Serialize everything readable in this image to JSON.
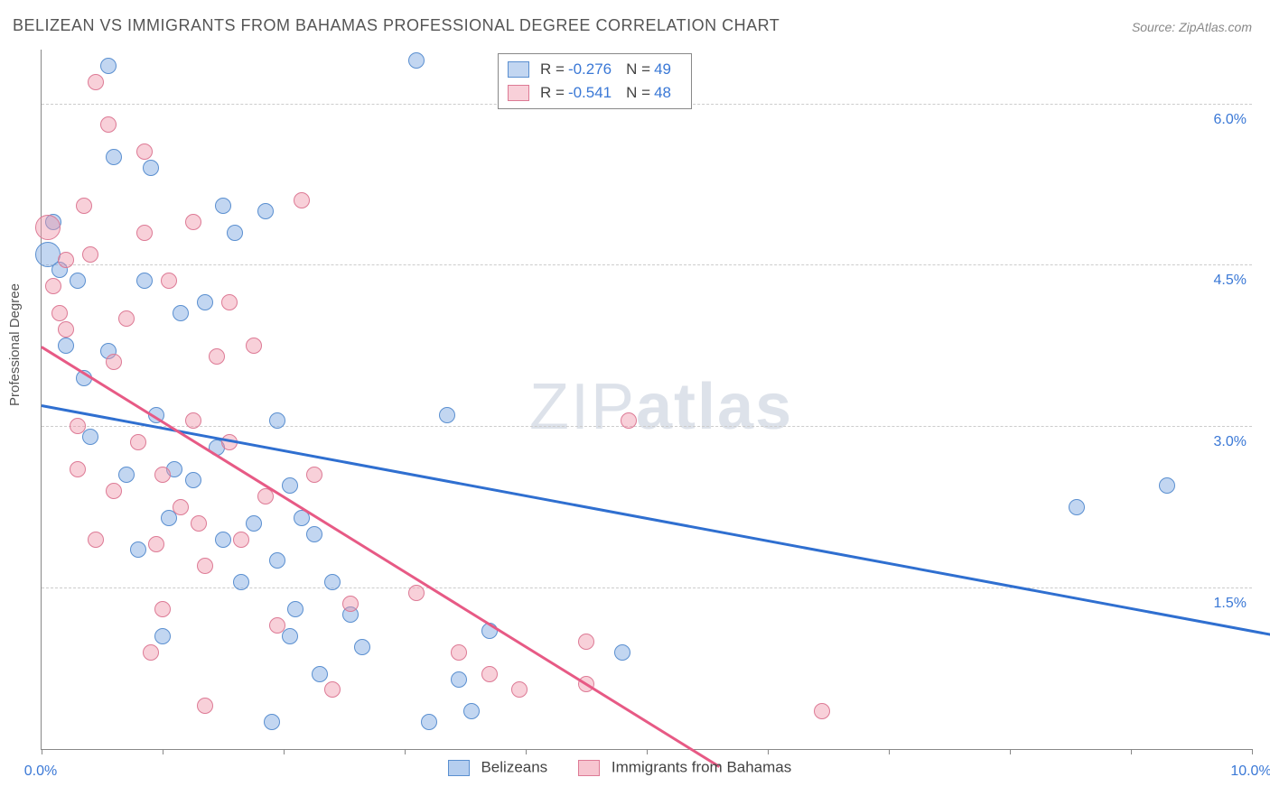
{
  "title": "BELIZEAN VS IMMIGRANTS FROM BAHAMAS PROFESSIONAL DEGREE CORRELATION CHART",
  "source": "Source: ZipAtlas.com",
  "ylabel": "Professional Degree",
  "watermark_thin": "ZIP",
  "watermark_bold": "atlas",
  "chart": {
    "type": "scatter",
    "xlim": [
      0.0,
      10.0
    ],
    "ylim": [
      0.0,
      6.5
    ],
    "x_ticks": [
      0.0,
      1.0,
      2.0,
      3.0,
      4.0,
      5.0,
      6.0,
      7.0,
      8.0,
      9.0,
      10.0
    ],
    "x_tick_labels": {
      "0": "0.0%",
      "10": "10.0%"
    },
    "y_gridlines": [
      1.5,
      3.0,
      4.5,
      6.0
    ],
    "y_tick_labels": {
      "1.5": "1.5%",
      "3.0": "3.0%",
      "4.5": "4.5%",
      "6.0": "6.0%"
    },
    "background_color": "#ffffff",
    "grid_color": "#cccccc",
    "axis_color": "#888888",
    "tick_label_color": "#3a78d6",
    "dot_radius": 9,
    "series": [
      {
        "name": "Belizeans",
        "fill": "rgba(120,165,225,0.45)",
        "stroke": "#5a8fd0",
        "line_color": "#2f6fd0",
        "R": "-0.276",
        "N": "49",
        "trend": {
          "x1": 0.0,
          "y1": 3.2,
          "x2": 10.5,
          "y2": 1.0
        },
        "points": [
          [
            0.05,
            4.6,
            14
          ],
          [
            0.1,
            4.9
          ],
          [
            0.3,
            4.35
          ],
          [
            0.55,
            6.35
          ],
          [
            0.6,
            5.5
          ],
          [
            0.7,
            2.55
          ],
          [
            0.85,
            4.35
          ],
          [
            0.9,
            5.4
          ],
          [
            1.15,
            4.05
          ],
          [
            1.35,
            4.15
          ],
          [
            1.5,
            5.05
          ],
          [
            1.1,
            2.6
          ],
          [
            1.25,
            2.5
          ],
          [
            1.45,
            2.8
          ],
          [
            1.5,
            1.95
          ],
          [
            1.6,
            4.8
          ],
          [
            1.65,
            1.55
          ],
          [
            1.75,
            2.1
          ],
          [
            1.95,
            3.05
          ],
          [
            2.05,
            2.45
          ],
          [
            2.15,
            2.15
          ],
          [
            2.25,
            2.0
          ],
          [
            2.4,
            1.55
          ],
          [
            2.55,
            1.25
          ],
          [
            2.65,
            0.95
          ],
          [
            1.9,
            0.25
          ],
          [
            3.1,
            6.4
          ],
          [
            3.2,
            0.25
          ],
          [
            3.35,
            3.1
          ],
          [
            3.45,
            0.65
          ],
          [
            3.55,
            0.35
          ],
          [
            3.7,
            1.1
          ],
          [
            4.8,
            0.9
          ],
          [
            8.55,
            2.25
          ],
          [
            9.3,
            2.45
          ],
          [
            0.8,
            1.85
          ],
          [
            1.0,
            1.05
          ],
          [
            1.85,
            5.0
          ],
          [
            2.1,
            1.3
          ],
          [
            0.4,
            2.9
          ],
          [
            0.2,
            3.75
          ],
          [
            0.35,
            3.45
          ],
          [
            0.95,
            3.1
          ],
          [
            1.95,
            1.75
          ],
          [
            2.3,
            0.7
          ],
          [
            0.15,
            4.45
          ],
          [
            0.55,
            3.7
          ],
          [
            1.05,
            2.15
          ],
          [
            2.05,
            1.05
          ]
        ]
      },
      {
        "name": "Immigrants from Bahamas",
        "fill": "rgba(240,150,170,0.45)",
        "stroke": "#dd7a95",
        "line_color": "#e75a85",
        "R": "-0.541",
        "N": "48",
        "trend": {
          "x1": 0.0,
          "y1": 3.75,
          "x2": 5.6,
          "y2": -0.15
        },
        "points": [
          [
            0.05,
            4.85,
            14
          ],
          [
            0.1,
            4.3
          ],
          [
            0.2,
            3.9
          ],
          [
            0.2,
            4.55
          ],
          [
            0.3,
            3.0
          ],
          [
            0.35,
            5.05
          ],
          [
            0.45,
            6.2
          ],
          [
            0.55,
            5.8
          ],
          [
            0.6,
            3.6
          ],
          [
            0.7,
            4.0
          ],
          [
            0.8,
            2.85
          ],
          [
            0.6,
            2.4
          ],
          [
            0.95,
            1.9
          ],
          [
            1.0,
            1.3
          ],
          [
            1.05,
            4.35
          ],
          [
            1.15,
            2.25
          ],
          [
            1.25,
            3.05
          ],
          [
            1.25,
            4.9
          ],
          [
            1.3,
            2.1
          ],
          [
            1.35,
            1.7
          ],
          [
            1.45,
            3.65
          ],
          [
            1.35,
            0.4
          ],
          [
            1.55,
            4.15
          ],
          [
            1.65,
            1.95
          ],
          [
            1.85,
            2.35
          ],
          [
            1.95,
            1.15
          ],
          [
            2.15,
            5.1
          ],
          [
            2.25,
            2.55
          ],
          [
            2.4,
            0.55
          ],
          [
            2.55,
            1.35
          ],
          [
            3.45,
            0.9
          ],
          [
            3.7,
            0.7
          ],
          [
            3.95,
            0.55
          ],
          [
            4.5,
            0.6
          ],
          [
            4.5,
            1.0
          ],
          [
            4.85,
            3.05
          ],
          [
            6.45,
            0.35
          ],
          [
            0.15,
            4.05
          ],
          [
            0.3,
            2.6
          ],
          [
            0.45,
            1.95
          ],
          [
            0.85,
            5.55
          ],
          [
            0.9,
            0.9
          ],
          [
            1.0,
            2.55
          ],
          [
            1.55,
            2.85
          ],
          [
            1.75,
            3.75
          ],
          [
            0.4,
            4.6
          ],
          [
            0.85,
            4.8
          ],
          [
            3.1,
            1.45
          ]
        ]
      }
    ]
  },
  "legend_bottom": [
    {
      "label": "Belizeans",
      "fill": "rgba(120,165,225,0.55)",
      "stroke": "#5a8fd0"
    },
    {
      "label": "Immigrants from Bahamas",
      "fill": "rgba(240,150,170,0.55)",
      "stroke": "#dd7a95"
    }
  ]
}
